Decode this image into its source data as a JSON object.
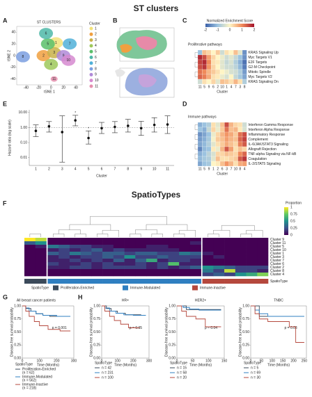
{
  "header": {
    "title": "ST clusters"
  },
  "panel_a": {
    "label": "A",
    "title": "ST  CLUSTERS",
    "xlabel": "tSNE 1",
    "ylabel": "tSNE 2",
    "legend_title": "Cluster",
    "clusters": [
      "1",
      "2",
      "3",
      "4",
      "5",
      "6",
      "7",
      "8",
      "9",
      "10",
      "11"
    ],
    "colors": [
      "#f2e27a",
      "#f0a040",
      "#c9b14a",
      "#9ec85a",
      "#5bbf6a",
      "#4fb8a8",
      "#50b0d8",
      "#7b9fe0",
      "#b08ad8",
      "#d68ad0",
      "#e58fae"
    ],
    "centers": [
      [
        8,
        22
      ],
      [
        -12,
        0
      ],
      [
        5,
        5
      ],
      [
        0,
        -15
      ],
      [
        -5,
        20
      ],
      [
        -8,
        38
      ],
      [
        30,
        20
      ],
      [
        -45,
        -2
      ],
      [
        20,
        0
      ],
      [
        28,
        -8
      ],
      [
        5,
        -40
      ]
    ],
    "xlim": [
      -55,
      50
    ],
    "ylim": [
      -50,
      50
    ],
    "xticks": [
      -40,
      -20,
      0,
      20,
      40
    ],
    "yticks": [
      -40,
      -20,
      0,
      20,
      40
    ]
  },
  "panel_b": {
    "label": "B"
  },
  "panel_c": {
    "label": "C",
    "colorbar": {
      "title": "Normalized Enrichment Score",
      "ticks": [
        -2,
        -1,
        0,
        1,
        2
      ],
      "lim": [
        -2,
        2
      ],
      "colors": [
        "#3a5fa8",
        "#9cc3e0",
        "#fff5c5",
        "#f08a5a",
        "#a3122a"
      ]
    },
    "title": "Proliferative pathways",
    "xlabel": "Cluster",
    "rows": [
      "KRAS Signaling Up",
      "Myc Targets V1",
      "E2F Targets",
      "G2-M Checkpoint",
      "Mitotic Spindle",
      "Myc Targets V2",
      "KRAS Signaling Dn"
    ],
    "columns": [
      "11",
      "5",
      "9",
      "6",
      "2",
      "10",
      "1",
      "4",
      "7",
      "3",
      "8"
    ],
    "values": [
      [
        -1,
        0.5,
        0.3,
        0,
        0.4,
        -0.5,
        0.2,
        0,
        0.5,
        -0.3,
        -1.5
      ],
      [
        1.8,
        1.5,
        0.8,
        0.3,
        0,
        -0.2,
        -0.5,
        -0.3,
        -0.6,
        -1,
        -1.5
      ],
      [
        1.6,
        1.8,
        1,
        0.2,
        0.1,
        -0.3,
        -0.6,
        -0.4,
        -0.8,
        -1.2,
        -1.8
      ],
      [
        1.5,
        1.7,
        0.9,
        0.3,
        0,
        -0.3,
        -0.5,
        -0.5,
        -0.7,
        -1.1,
        -1.7
      ],
      [
        1.2,
        1,
        0.6,
        0.4,
        0.2,
        0,
        -0.2,
        -0.4,
        -0.5,
        -0.8,
        -1.4
      ],
      [
        1.3,
        1.1,
        0.7,
        0.2,
        0.1,
        -0.2,
        -0.4,
        0,
        -0.6,
        -0.9,
        -1.3
      ],
      [
        -0.5,
        0.2,
        0,
        0.3,
        -0.3,
        0.5,
        0.4,
        0.2,
        0.6,
        0.2,
        -0.8
      ]
    ]
  },
  "panel_d": {
    "label": "D",
    "title": "Immune pathways",
    "xlabel": "Cluster",
    "rows": [
      "Interferon Gamma Response",
      "Interferon Alpha Response",
      "Inflammatory Response",
      "Complement",
      "IL-6/JAK/STAT3 Signaling",
      "Allograft Rejection",
      "TNF-alpha Signaling via NF-kB",
      "Coagulation",
      "IL-2/STAT5 Signaling"
    ],
    "columns": [
      "11",
      "5",
      "9",
      "1",
      "2",
      "6",
      "3",
      "7",
      "10",
      "8",
      "4"
    ],
    "values": [
      [
        -1.2,
        -1,
        -0.8,
        0.2,
        -0.3,
        0.5,
        1.5,
        0.6,
        0.3,
        0.2,
        -0.5
      ],
      [
        -1,
        -1.2,
        -0.6,
        0.3,
        -0.2,
        0.4,
        1.2,
        0.5,
        0.6,
        0.1,
        -0.4
      ],
      [
        -1.5,
        -1.3,
        -1,
        -0.2,
        0.3,
        0.6,
        0.9,
        0.7,
        0.4,
        1.2,
        1.5
      ],
      [
        -1.4,
        -1.2,
        -0.9,
        -0.1,
        0.4,
        0.5,
        0.8,
        0.6,
        0.5,
        1.3,
        1.6
      ],
      [
        -1.3,
        -1.1,
        -0.8,
        -0.3,
        0.2,
        0.4,
        0.7,
        0.5,
        0.3,
        1.1,
        1.4
      ],
      [
        -1.6,
        -1.1,
        -1,
        0.1,
        -0.2,
        0.6,
        1.4,
        0.8,
        0.2,
        0.5,
        0.3
      ],
      [
        -1.2,
        -1,
        -0.7,
        -0.4,
        0.3,
        0.3,
        0.5,
        0.4,
        0.3,
        1,
        1.3
      ],
      [
        -1.1,
        -0.9,
        -0.8,
        -0.3,
        0.5,
        0.2,
        0.2,
        0.3,
        0.4,
        1.4,
        1.7
      ],
      [
        -1.3,
        -1,
        -0.9,
        0,
        0.1,
        0.5,
        0.9,
        0.6,
        0.2,
        0.7,
        0.8
      ]
    ]
  },
  "panel_e": {
    "label": "E",
    "type": "forest",
    "ylabel": "Hazard ratio (log scale)",
    "xlabel": "Cluster",
    "log_scale": true,
    "reference": 1,
    "categories": [
      "1",
      "2",
      "3",
      "4",
      "5",
      "6",
      "7",
      "8",
      "9",
      "10",
      "11"
    ],
    "values": [
      0.6,
      1.2,
      0.5,
      3,
      0.2,
      0.9,
      1.1,
      1.3,
      0.9,
      1.5,
      1.6
    ],
    "lower": [
      0.25,
      0.5,
      0.005,
      1.3,
      0.08,
      0.4,
      0.45,
      0.5,
      0.3,
      0.5,
      0.4
    ],
    "upper": [
      1.5,
      2.5,
      6,
      6.5,
      0.6,
      2.2,
      2.5,
      3.5,
      2.6,
      4.5,
      6
    ],
    "significance": [
      null,
      null,
      null,
      "*",
      "*",
      null,
      null,
      null,
      null,
      null,
      null
    ],
    "ylim": [
      0.003,
      15
    ],
    "yticks": [
      0.01,
      {
        "value": 0.1,
        "label": "0.10"
      },
      {
        "value": 1,
        "label": "1.00"
      },
      {
        "value": 10,
        "label": "10.00"
      }
    ]
  },
  "section2": {
    "title": "SpatioTypes"
  },
  "panel_f": {
    "label": "F",
    "legend_title": "Proportion",
    "lim": [
      0,
      1
    ],
    "ticks": [
      0,
      0.25,
      0.5,
      0.75,
      1
    ],
    "colorscale": [
      "#440154",
      "#3b528b",
      "#21918c",
      "#5ec962",
      "#fde725"
    ],
    "rows": [
      "Cluster 9",
      "Cluster 11",
      "Cluster 5",
      "Cluster 10",
      "Cluster 1",
      "Cluster 3",
      "Cluster 7",
      "Cluster 6",
      "Cluster 2",
      "Cluster 8",
      "Cluster 4"
    ],
    "column_spatiotype": [
      0,
      0,
      1,
      1,
      1,
      1,
      1,
      1,
      1,
      1,
      1,
      1,
      1,
      1,
      1,
      1,
      2,
      2,
      2,
      2,
      2,
      2
    ],
    "values": [
      [
        1,
        0.9,
        0,
        0,
        0,
        0,
        0,
        0,
        0,
        0,
        0,
        0,
        0,
        0,
        0,
        0,
        0,
        0,
        0,
        0,
        0,
        0
      ],
      [
        0.3,
        0.5,
        0,
        0,
        0,
        0,
        0,
        0,
        0,
        0,
        0,
        0,
        0,
        0,
        0,
        0.1,
        0,
        0,
        0,
        0,
        0,
        0
      ],
      [
        0,
        0.1,
        0.4,
        0.3,
        0.2,
        0.2,
        0.1,
        0.1,
        0,
        0,
        0,
        0.1,
        0.1,
        0,
        0,
        0,
        0,
        0,
        0,
        0,
        0,
        0
      ],
      [
        0,
        0,
        0.1,
        0.2,
        0.1,
        0.2,
        0.3,
        0.1,
        0.2,
        0.1,
        0.1,
        0.1,
        0.1,
        0.1,
        0,
        0,
        0,
        0,
        0,
        0,
        0,
        0
      ],
      [
        0,
        0,
        0.3,
        0.2,
        0.4,
        0.3,
        0.2,
        0.3,
        0.3,
        0.2,
        0.3,
        0.3,
        0.2,
        0.2,
        0.4,
        0.3,
        0.1,
        0,
        0,
        0,
        0,
        0
      ],
      [
        0,
        0,
        0.1,
        0.2,
        0.1,
        0.2,
        0.2,
        0.3,
        0.2,
        0.5,
        0.2,
        0.2,
        0.3,
        0.2,
        0.2,
        0.2,
        0,
        0.1,
        0,
        0,
        0,
        0
      ],
      [
        0,
        0,
        0.1,
        0.1,
        0.2,
        0.1,
        0.2,
        0.1,
        0.3,
        0.1,
        0.3,
        0.6,
        0.1,
        0.2,
        0.2,
        0.1,
        0,
        0,
        0,
        0,
        0,
        0
      ],
      [
        0,
        0,
        0.2,
        0.1,
        0.1,
        0.2,
        0.1,
        0.2,
        0.1,
        0.1,
        0.2,
        0.1,
        0.2,
        0.7,
        0.1,
        0.1,
        0,
        0,
        0,
        0,
        0,
        0
      ],
      [
        0,
        0,
        0.1,
        0.1,
        0.2,
        0.2,
        0.1,
        0.2,
        0.2,
        0.2,
        0.2,
        0.1,
        0.2,
        0.1,
        0.2,
        0.3,
        0.5,
        0.4,
        0.3,
        0.2,
        0.2,
        0.2
      ],
      [
        0,
        0,
        0,
        0,
        0,
        0,
        0,
        0,
        0,
        0,
        0,
        0,
        0,
        0,
        0,
        0,
        0.4,
        0.2,
        0.9,
        0.2,
        0.2,
        0.1
      ],
      [
        0,
        0,
        0,
        0,
        0,
        0,
        0,
        0,
        0,
        0,
        0,
        0,
        0,
        0,
        0,
        0,
        0.2,
        0.3,
        0.2,
        0.5,
        0.6,
        0.8
      ]
    ],
    "spatiotype_label": "SpatioType",
    "spatiotypes": [
      "Proliferation-Enriched",
      "Immune-Modulated",
      "Immune-Inactive"
    ],
    "spatiotype_colors": [
      "#3b4a5a",
      "#2f7fc1",
      "#b5483d"
    ]
  },
  "panel_g": {
    "label": "G"
  },
  "panel_h": {
    "label": "H"
  },
  "km": [
    {
      "type": "km",
      "title": "All breast cancer patients",
      "ylabel": "Disease-free survival probability",
      "xlabel": "Time (Months)",
      "p_label": "p = 0.001",
      "legend_title": "SpatioType",
      "xlim": [
        0,
        300
      ],
      "xticks": [
        0,
        100,
        200,
        300
      ],
      "ylim": [
        0,
        1
      ],
      "yticks": [
        {
          "value": 0,
          "label": "0.00"
        },
        {
          "value": 0.25,
          "label": "0.25"
        },
        {
          "value": 0.5,
          "label": "0.50"
        },
        {
          "value": 0.75,
          "label": "0.75"
        },
        {
          "value": 1,
          "label": "1.00"
        }
      ],
      "series": [
        {
          "name": "Proliferation-Enriched",
          "n_label": "(n = 62)",
          "color": "#3b4a5a",
          "x": [
            0,
            20,
            50,
            80,
            120,
            160,
            260
          ],
          "y": [
            1,
            0.95,
            0.9,
            0.85,
            0.82,
            0.8,
            0.8
          ]
        },
        {
          "name": "Immune-Modulated",
          "n_label": "(n = 562)",
          "color": "#2f7fc1",
          "x": [
            0,
            20,
            40,
            80,
            120,
            200,
            280
          ],
          "y": [
            1,
            0.96,
            0.9,
            0.85,
            0.82,
            0.8,
            0.8
          ]
        },
        {
          "name": "Immune-Inactive",
          "n_label": "(n = 218)",
          "color": "#b5483d",
          "x": [
            0,
            20,
            40,
            70,
            100,
            150,
            220,
            280
          ],
          "y": [
            1,
            0.9,
            0.8,
            0.7,
            0.62,
            0.55,
            0.52,
            0.52
          ]
        }
      ]
    },
    {
      "type": "km",
      "title": "HR+",
      "ylabel": "Disease-free survival probability",
      "xlabel": "Time (Months)",
      "p_label": "p = 0.05",
      "legend_title": "SpatioType",
      "xlim": [
        0,
        300
      ],
      "xticks": [
        0,
        100,
        200,
        300
      ],
      "ylim": [
        0,
        1
      ],
      "yticks": [
        {
          "value": 0,
          "label": "0.00"
        },
        {
          "value": 0.25,
          "label": "0.25"
        },
        {
          "value": 0.5,
          "label": "0.50"
        },
        {
          "value": 0.75,
          "label": "0.75"
        },
        {
          "value": 1,
          "label": "1.00"
        }
      ],
      "series": [
        {
          "name": "n = 42",
          "color": "#3b4a5a",
          "x": [
            0,
            30,
            60,
            100,
            150,
            250
          ],
          "y": [
            1,
            0.95,
            0.9,
            0.86,
            0.83,
            0.83
          ]
        },
        {
          "name": "n = 231",
          "color": "#2f7fc1",
          "x": [
            0,
            20,
            50,
            90,
            140,
            200,
            280
          ],
          "y": [
            1,
            0.96,
            0.9,
            0.86,
            0.83,
            0.82,
            0.82
          ]
        },
        {
          "name": "n = 100",
          "color": "#b5483d",
          "x": [
            0,
            20,
            50,
            80,
            120,
            170,
            240
          ],
          "y": [
            1,
            0.9,
            0.8,
            0.72,
            0.65,
            0.58,
            0.58
          ]
        }
      ]
    },
    {
      "type": "km",
      "title": "HER2+",
      "ylabel": "Disease-free survival probability",
      "xlabel": "Time (Months)",
      "p_label": "p = 0.04",
      "legend_title": "SpatioType",
      "xlim": [
        0,
        150
      ],
      "xticks": [
        0,
        50,
        100,
        150
      ],
      "ylim": [
        0,
        1
      ],
      "yticks": [
        {
          "value": 0,
          "label": "0.00"
        },
        {
          "value": 0.25,
          "label": "0.25"
        },
        {
          "value": 0.5,
          "label": "0.50"
        },
        {
          "value": 0.75,
          "label": "0.75"
        },
        {
          "value": 1,
          "label": "1.00"
        }
      ],
      "series": [
        {
          "name": "n = 15",
          "color": "#3b4a5a",
          "x": [
            0,
            30,
            140
          ],
          "y": [
            1,
            0.93,
            0.93
          ]
        },
        {
          "name": "n = 58",
          "color": "#2f7fc1",
          "x": [
            0,
            20,
            40,
            70,
            140
          ],
          "y": [
            1,
            0.97,
            0.94,
            0.92,
            0.92
          ]
        },
        {
          "name": "n = 20",
          "color": "#b5483d",
          "x": [
            0,
            15,
            30,
            60,
            90,
            140
          ],
          "y": [
            1,
            0.9,
            0.8,
            0.75,
            0.6,
            0.6
          ]
        }
      ]
    },
    {
      "type": "km",
      "title": "TNBC",
      "ylabel": "Disease-free survival probability",
      "xlabel": "Time (Months)",
      "p_label": "p = 0.03",
      "legend_title": "SpatioType",
      "xlim": [
        0,
        260
      ],
      "xticks": [
        0,
        50,
        100,
        150,
        200,
        250
      ],
      "ylim": [
        0,
        1
      ],
      "yticks": [
        {
          "value": 0,
          "label": "0.00"
        },
        {
          "value": 0.25,
          "label": "0.25"
        },
        {
          "value": 0.5,
          "label": "0.50"
        },
        {
          "value": 0.75,
          "label": "0.75"
        },
        {
          "value": 1,
          "label": "1.00"
        }
      ],
      "series": [
        {
          "name": "n = 5",
          "color": "#3b4a5a",
          "x": [
            0,
            40,
            100
          ],
          "y": [
            1,
            0.8,
            0.8
          ]
        },
        {
          "name": "n = 69",
          "color": "#2f7fc1",
          "x": [
            0,
            20,
            40,
            80,
            150,
            250
          ],
          "y": [
            1,
            0.92,
            0.85,
            0.8,
            0.8,
            0.8
          ]
        },
        {
          "name": "n = 30",
          "color": "#b5483d",
          "x": [
            0,
            20,
            40,
            80,
            180,
            210,
            250
          ],
          "y": [
            1,
            0.85,
            0.75,
            0.7,
            0.6,
            0.3,
            0.3
          ]
        }
      ]
    }
  ]
}
